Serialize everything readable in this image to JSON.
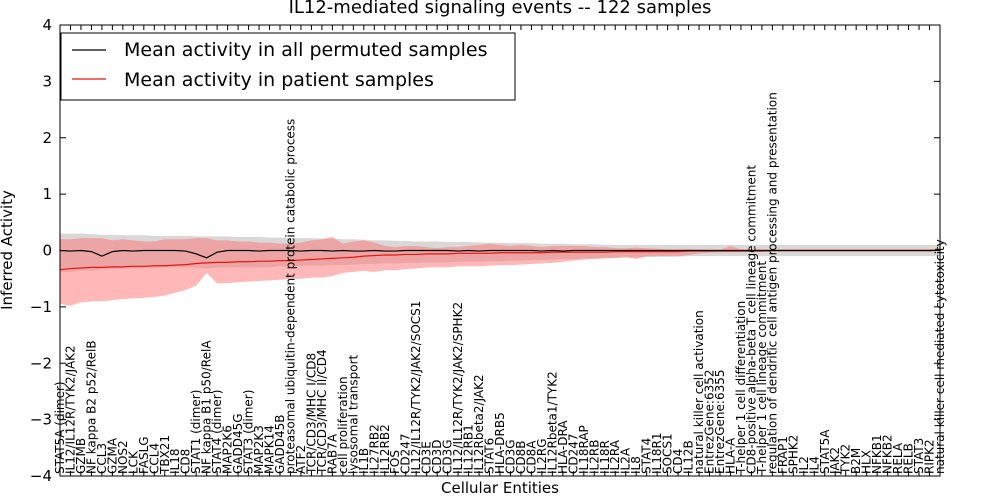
{
  "chart_data": {
    "type": "line",
    "title": "IL12-mediated signaling events -- 122 samples",
    "xlabel": "Cellular Entities",
    "ylabel": "Inferred Activity",
    "ylim": [
      -4,
      4
    ],
    "yticks": [
      -4,
      -3,
      -2,
      -1,
      0,
      1,
      2,
      3,
      4
    ],
    "legend_position": "top-left",
    "colors": {
      "permuted_line": "#000000",
      "patient_line": "#e8150f",
      "patient_band": "#ff6f6f",
      "permuted_band": "#a8a8a8"
    },
    "categories": [
      "STAT5A (dimer)",
      "IL12/IL12R/TYK2/JAK2",
      "GZMB",
      "NF kappa B2 p52/RelB",
      "CCL3",
      "GZMA",
      "NOS2",
      "LCK",
      "FASLG",
      "CCL4",
      "TBX21",
      "IL18",
      "CD8",
      "STAT1 (dimer)",
      "NF kappa B1 p50/RelA",
      "STAT4 (dimer)",
      "MAP2K6",
      "GADD45G",
      "STAT3 (dimer)",
      "MAP2K3",
      "MAPK14",
      "GADD45B",
      "proteasomal ubiquitin-dependent protein catabolic process",
      "ATF2",
      "TCR/CD3/MHC I/CD8",
      "TCR/CD3/MHC II/CD4",
      "RAB7A",
      "cell proliferation",
      "lysosomal transport",
      "IL1B",
      "IL27RB2",
      "IL12RB2",
      "FOS",
      "CD247",
      "IL12/IL12R/TYK2/JAK2/SOCS1",
      "CD3E",
      "CD3D",
      "CD3G",
      "IL12/IL12R/TYK2/JAK2/SPHK2",
      "IL12RB1",
      "IL12Rbeta2/JAK2",
      "STAT6",
      "HLA-DRB5",
      "CD3G",
      "CD8B",
      "CD8A",
      "IL2RG",
      "IL12Rbeta1/TYK2",
      "HLA-DRA",
      "CD247",
      "IL18RAP",
      "IL2RB",
      "IL18R",
      "IL2RA",
      "IL2A",
      "IL8",
      "STAT4",
      "IL18R1",
      "SOCS1",
      "CD4",
      "IL12B",
      "natural killer cell activation",
      "EntrezGene:6352",
      "EntrezGene:6355",
      "HLA-A",
      "T-helper 1 cell differentiation",
      "CD8-positive alpha-beta T cell lineage commitment",
      "T-helper 1 cell lineage commitment",
      "regulation of dendritic cell antigen processing and presentation",
      "FRAP1",
      "SPHK2",
      "IL2",
      "IL4",
      "STAT5A",
      "JAK2",
      "TYK2",
      "B2M",
      "HLX",
      "NFKB1",
      "NFKB2",
      "RELA",
      "RELB",
      "STAT3",
      "RIPK2",
      "natural killer cell mediated cytotoxicity"
    ],
    "series": [
      {
        "name": "Mean activity in all permuted samples",
        "values": [
          0,
          -0.01,
          0,
          -0.02,
          -0.1,
          -0.02,
          0,
          -0.01,
          0,
          0,
          0,
          0,
          -0.01,
          -0.06,
          -0.13,
          -0.03,
          0,
          0,
          0,
          -0.01,
          0,
          0,
          0,
          -0.01,
          0,
          0,
          -0.01,
          0,
          -0.01,
          -0.01,
          0,
          -0.01,
          -0.01,
          0,
          0,
          0,
          0,
          0,
          -0.01,
          0,
          -0.01,
          0,
          0,
          0,
          0,
          0,
          -0.01,
          0,
          -0.01,
          0,
          0,
          0,
          0,
          0,
          0,
          0,
          0,
          0,
          0,
          0,
          0,
          0,
          0,
          0,
          0,
          0,
          0,
          0,
          0,
          0,
          0,
          0,
          0,
          0,
          0,
          0,
          0,
          0,
          0,
          0,
          0,
          0,
          0,
          0,
          0
        ],
        "lower": [
          -0.38,
          -0.38,
          -0.36,
          -0.36,
          -0.34,
          -0.33,
          -0.32,
          -0.32,
          -0.31,
          -0.31,
          -0.3,
          -0.3,
          -0.3,
          -0.3,
          -0.32,
          -0.3,
          -0.3,
          -0.3,
          -0.3,
          -0.3,
          -0.3,
          -0.28,
          -0.28,
          -0.27,
          -0.27,
          -0.27,
          -0.26,
          -0.26,
          -0.25,
          -0.24,
          -0.24,
          -0.23,
          -0.23,
          -0.22,
          -0.22,
          -0.21,
          -0.21,
          -0.21,
          -0.2,
          -0.2,
          -0.2,
          -0.19,
          -0.19,
          -0.18,
          -0.18,
          -0.17,
          -0.17,
          -0.16,
          -0.15,
          -0.15,
          -0.14,
          -0.14,
          -0.13,
          -0.13,
          -0.12,
          -0.12,
          -0.12,
          -0.11,
          -0.11,
          -0.11,
          -0.1,
          -0.1,
          -0.1,
          -0.1,
          -0.1,
          -0.1,
          -0.1,
          -0.1,
          -0.1,
          -0.1,
          -0.1,
          -0.1,
          -0.1,
          -0.1,
          -0.1,
          -0.1,
          -0.1,
          -0.1,
          -0.1,
          -0.1,
          -0.1,
          -0.1,
          -0.1,
          -0.1,
          -0.1
        ],
        "upper": [
          0.3,
          0.3,
          0.3,
          0.29,
          0.28,
          0.28,
          0.27,
          0.27,
          0.27,
          0.26,
          0.26,
          0.26,
          0.26,
          0.25,
          0.25,
          0.25,
          0.25,
          0.24,
          0.24,
          0.24,
          0.23,
          0.23,
          0.22,
          0.22,
          0.22,
          0.21,
          0.21,
          0.2,
          0.2,
          0.19,
          0.18,
          0.18,
          0.17,
          0.17,
          0.16,
          0.16,
          0.16,
          0.15,
          0.15,
          0.15,
          0.14,
          0.14,
          0.14,
          0.13,
          0.13,
          0.13,
          0.12,
          0.12,
          0.12,
          0.11,
          0.11,
          0.11,
          0.1,
          0.1,
          0.1,
          0.1,
          0.1,
          0.1,
          0.1,
          0.1,
          0.1,
          0.1,
          0.1,
          0.1,
          0.1,
          0.1,
          0.1,
          0.1,
          0.1,
          0.1,
          0.1,
          0.1,
          0.1,
          0.1,
          0.1,
          0.1,
          0.1,
          0.1,
          0.1,
          0.1,
          0.1,
          0.1,
          0.1,
          0.1,
          0.1
        ]
      },
      {
        "name": "Mean activity in patient samples",
        "values": [
          -0.34,
          -0.32,
          -0.31,
          -0.3,
          -0.3,
          -0.29,
          -0.29,
          -0.28,
          -0.28,
          -0.27,
          -0.27,
          -0.26,
          -0.25,
          -0.23,
          -0.22,
          -0.21,
          -0.21,
          -0.2,
          -0.2,
          -0.19,
          -0.19,
          -0.18,
          -0.18,
          -0.17,
          -0.16,
          -0.15,
          -0.14,
          -0.13,
          -0.12,
          -0.1,
          -0.09,
          -0.08,
          -0.08,
          -0.07,
          -0.07,
          -0.06,
          -0.06,
          -0.06,
          -0.05,
          -0.05,
          -0.05,
          -0.05,
          -0.04,
          -0.04,
          -0.04,
          -0.04,
          -0.04,
          -0.03,
          -0.03,
          -0.03,
          -0.03,
          -0.03,
          -0.03,
          -0.02,
          -0.02,
          -0.02,
          -0.02,
          -0.02,
          -0.02,
          -0.02,
          -0.01,
          -0.01,
          -0.01,
          -0.01,
          -0.01,
          -0.01,
          -0.01,
          -0.01,
          0,
          0,
          0,
          0,
          0,
          0,
          0,
          0,
          0,
          0,
          0,
          0,
          0,
          0,
          0,
          0,
          0.01
        ],
        "lower": [
          -0.95,
          -0.98,
          -0.92,
          -0.9,
          -0.9,
          -0.88,
          -0.86,
          -0.85,
          -0.84,
          -0.82,
          -0.8,
          -0.75,
          -0.7,
          -0.62,
          -0.4,
          -0.58,
          -0.58,
          -0.56,
          -0.55,
          -0.54,
          -0.53,
          -0.52,
          -0.5,
          -0.5,
          -0.48,
          -0.48,
          -0.45,
          -0.4,
          -0.38,
          -0.36,
          -0.38,
          -0.35,
          -0.35,
          -0.33,
          -0.32,
          -0.3,
          -0.3,
          -0.3,
          -0.28,
          -0.28,
          -0.28,
          -0.27,
          -0.26,
          -0.26,
          -0.25,
          -0.24,
          -0.23,
          -0.22,
          -0.2,
          -0.18,
          -0.16,
          -0.15,
          -0.14,
          -0.13,
          -0.12,
          -0.15,
          -0.1,
          -0.1,
          -0.1,
          -0.1,
          -0.08,
          -0.05,
          -0.04,
          -0.03,
          -0.03,
          -0.03,
          -0.02,
          -0.02,
          -0.02,
          -0.02,
          -0.02,
          -0.02,
          -0.02,
          -0.02,
          -0.02,
          -0.02,
          -0.02,
          -0.02,
          -0.02,
          -0.02,
          -0.02,
          -0.02,
          -0.02,
          -0.02,
          0
        ],
        "upper": [
          0.2,
          0.2,
          0.22,
          0.22,
          0.22,
          0.18,
          0.2,
          0.18,
          0.16,
          0.16,
          0.2,
          0.2,
          0.2,
          0.22,
          0.22,
          0.18,
          0.18,
          0.16,
          0.16,
          0.14,
          0.14,
          0.12,
          0.12,
          0.14,
          0.18,
          0.2,
          0.24,
          0.12,
          0.16,
          0.18,
          0.14,
          0.08,
          0.06,
          0.08,
          0.08,
          0.06,
          0.04,
          0.06,
          0.06,
          0.08,
          0.1,
          0.12,
          0.1,
          0.08,
          0.1,
          0.08,
          0.06,
          0.08,
          0.08,
          0.08,
          0.08,
          0.06,
          0.06,
          0.04,
          0.04,
          0.05,
          0.04,
          0.03,
          0.02,
          0.02,
          0.02,
          0.02,
          0.01,
          0.01,
          0.08,
          0.02,
          0.02,
          0.02,
          0.02,
          0.02,
          0.02,
          0.02,
          0.02,
          0.02,
          0.02,
          0.02,
          0.02,
          0.02,
          0.02,
          0.02,
          0.02,
          0.02,
          0.02,
          0.02,
          0.03
        ]
      }
    ]
  }
}
